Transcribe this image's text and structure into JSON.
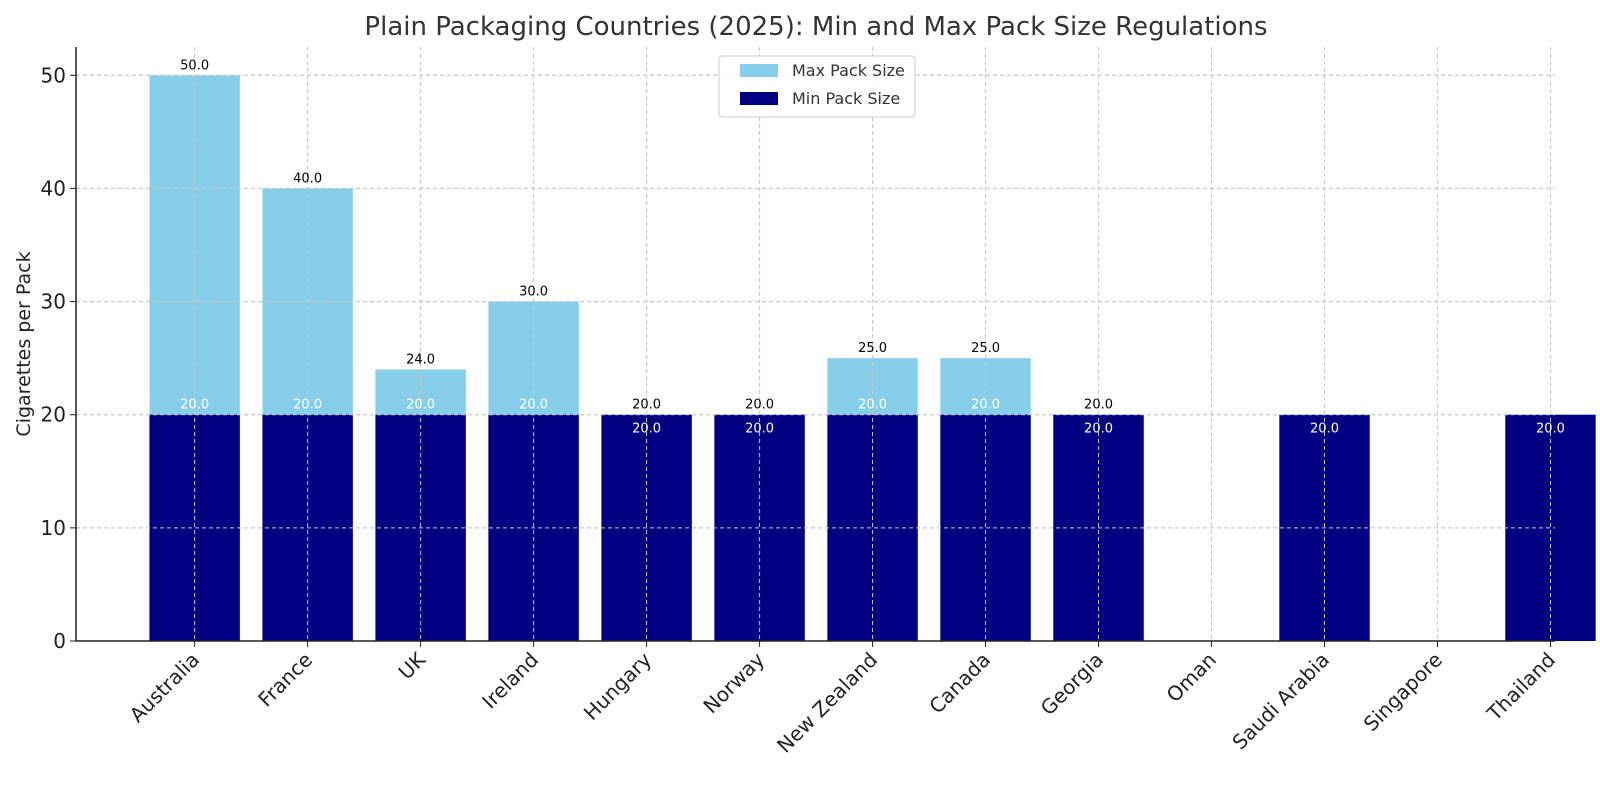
{
  "chart_data": {
    "type": "bar",
    "title": "Plain Packaging Countries (2025): Min and Max Pack Size Regulations",
    "xlabel": "",
    "ylabel": "Cigarettes per Pack",
    "ylim": [
      0,
      52.5
    ],
    "yticks": [
      0,
      10,
      20,
      30,
      40,
      50
    ],
    "grid": true,
    "legend_position": "top-center",
    "categories": [
      "Australia",
      "France",
      "UK",
      "Ireland",
      "Hungary",
      "Norway",
      "New Zealand",
      "Canada",
      "Georgia",
      "Oman",
      "Saudi Arabia",
      "Singapore",
      "Thailand"
    ],
    "series": [
      {
        "name": "Max Pack Size",
        "color": "#87ceeb",
        "values": [
          50,
          40,
          24,
          30,
          20,
          20,
          25,
          25,
          20,
          null,
          null,
          null,
          null
        ]
      },
      {
        "name": "Min Pack Size",
        "color": "#000080",
        "values": [
          20,
          20,
          20,
          20,
          20,
          20,
          20,
          20,
          20,
          null,
          20,
          null,
          20
        ]
      }
    ]
  }
}
